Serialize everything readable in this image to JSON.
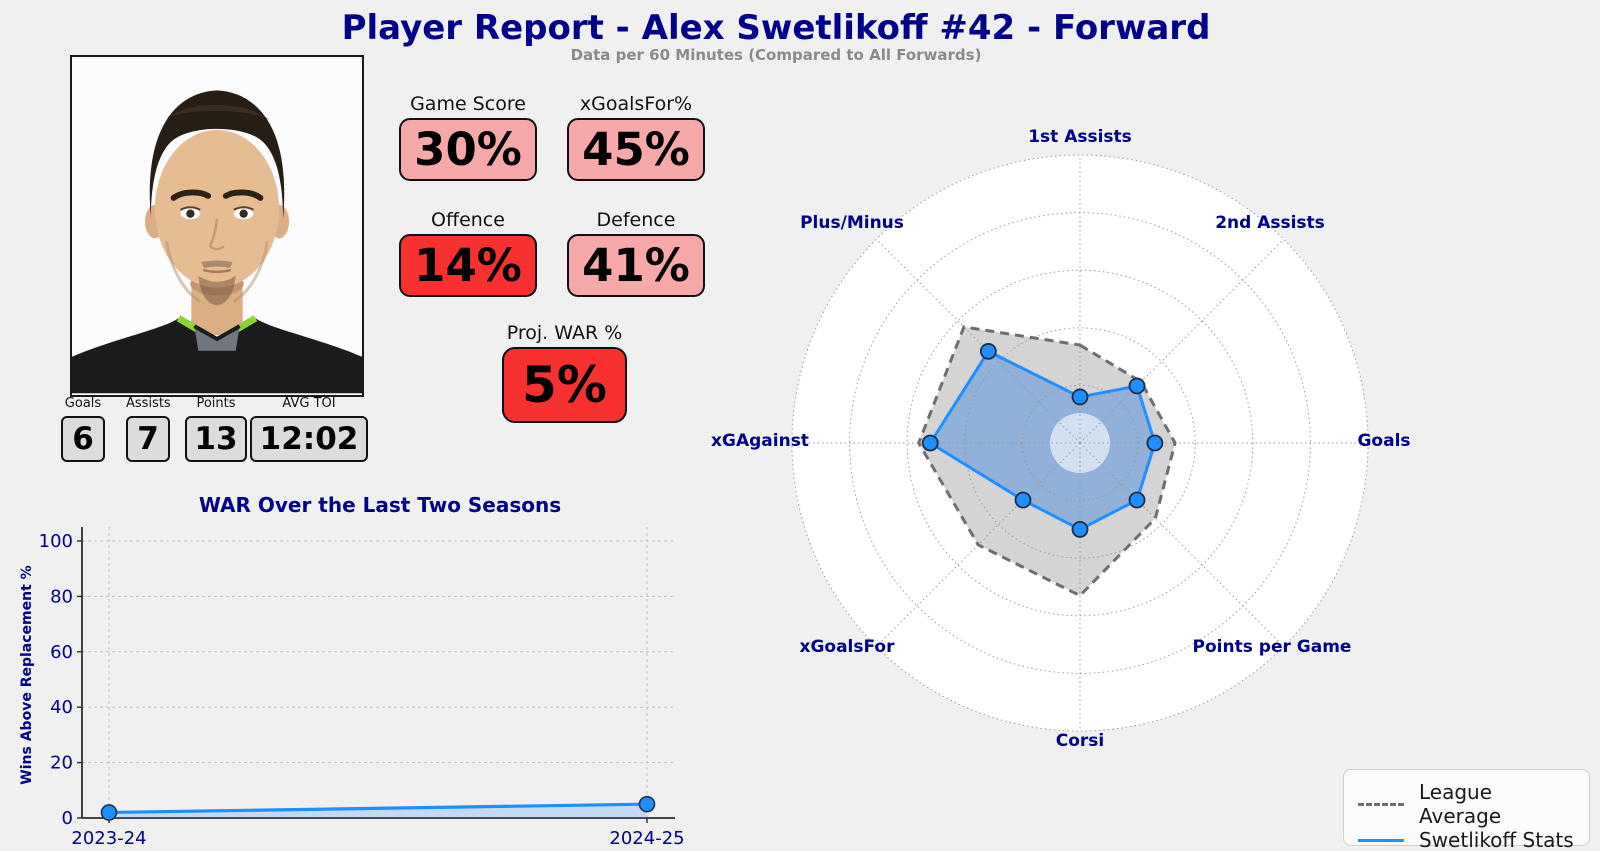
{
  "header": {
    "title": "Player Report - Alex Swetlikoff #42 - Forward",
    "subtitle": "Data per 60 Minutes (Compared to All Forwards)"
  },
  "badges": [
    {
      "label": "Game Score",
      "value": "30%",
      "tone": "pink"
    },
    {
      "label": "xGoalsFor%",
      "value": "45%",
      "tone": "pink"
    },
    {
      "label": "Offence",
      "value": "14%",
      "tone": "red"
    },
    {
      "label": "Defence",
      "value": "41%",
      "tone": "pink"
    },
    {
      "label": "Proj. WAR %",
      "value": "5%",
      "tone": "red"
    }
  ],
  "box_stats": [
    {
      "label": "Goals",
      "value": "6"
    },
    {
      "label": "Assists",
      "value": "7"
    },
    {
      "label": "Points",
      "value": "13"
    },
    {
      "label": "AVG TOI",
      "value": "12:02"
    }
  ],
  "colors": {
    "background": "#f0f0f0",
    "navy": "#00008b",
    "subtitle_gray": "#8a8a8a",
    "badge_pink": "#f7a8a8",
    "badge_red": "#f73030",
    "box_gray": "#dcdcdc",
    "line_blue": "#1e90ff",
    "league_gray": "#6e6e6e"
  },
  "chart_data": [
    {
      "type": "line",
      "title": "WAR Over the Last Two Seasons",
      "xlabel": "",
      "ylabel": "Wins Above Replacement %",
      "categories": [
        "2023-24",
        "2024-25"
      ],
      "values": [
        2,
        5
      ],
      "ylim": [
        0,
        105
      ],
      "yticks": [
        0,
        20,
        40,
        60,
        80,
        100
      ],
      "grid": true,
      "fill_under_line": true,
      "series_color": "#1e90ff"
    },
    {
      "type": "radar",
      "axes": [
        "1st Assists",
        "2nd Assists",
        "Goals",
        "Points per Game",
        "Corsi",
        "xGoalsFor",
        "xGAgainst",
        "Plus/Minus"
      ],
      "rlim": [
        0,
        100
      ],
      "grid_steps": [
        20,
        40,
        60,
        80,
        100
      ],
      "series": [
        {
          "name": "League Average",
          "values": [
            34,
            30,
            33,
            37,
            53,
            50,
            56,
            57
          ],
          "style": "dashed-gray"
        },
        {
          "name": "Swetlikoff Stats",
          "values": [
            16,
            28,
            26,
            28,
            30,
            28,
            52,
            45
          ],
          "style": "solid-blue"
        }
      ],
      "legend_position": "bottom-right"
    }
  ]
}
